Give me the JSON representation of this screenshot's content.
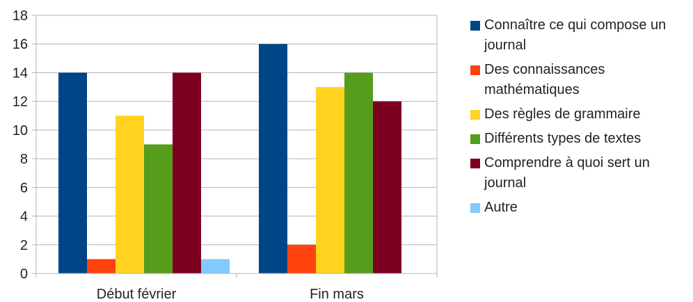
{
  "chart_data": {
    "type": "bar",
    "title": "",
    "xlabel": "",
    "ylabel": "",
    "categories": [
      "Début février",
      "Fin mars"
    ],
    "ylim": [
      0,
      18
    ],
    "yticks": [
      0,
      2,
      4,
      6,
      8,
      10,
      12,
      14,
      16,
      18
    ],
    "grid": true,
    "legend_position": "right",
    "series": [
      {
        "name": "Connaître ce qui compose un journal",
        "color": "#004586",
        "values": [
          14,
          16
        ]
      },
      {
        "name": "Des connaissances mathématiques",
        "color": "#ff420e",
        "values": [
          1,
          2
        ]
      },
      {
        "name": "Des règles de grammaire",
        "color": "#ffd320",
        "values": [
          11,
          13
        ]
      },
      {
        "name": "Différents types de textes",
        "color": "#579d1c",
        "values": [
          9,
          14
        ]
      },
      {
        "name": "Comprendre à quoi sert un journal",
        "color": "#7e0021",
        "values": [
          14,
          12
        ]
      },
      {
        "name": "Autre",
        "color": "#83caff",
        "values": [
          1,
          0
        ]
      }
    ]
  }
}
